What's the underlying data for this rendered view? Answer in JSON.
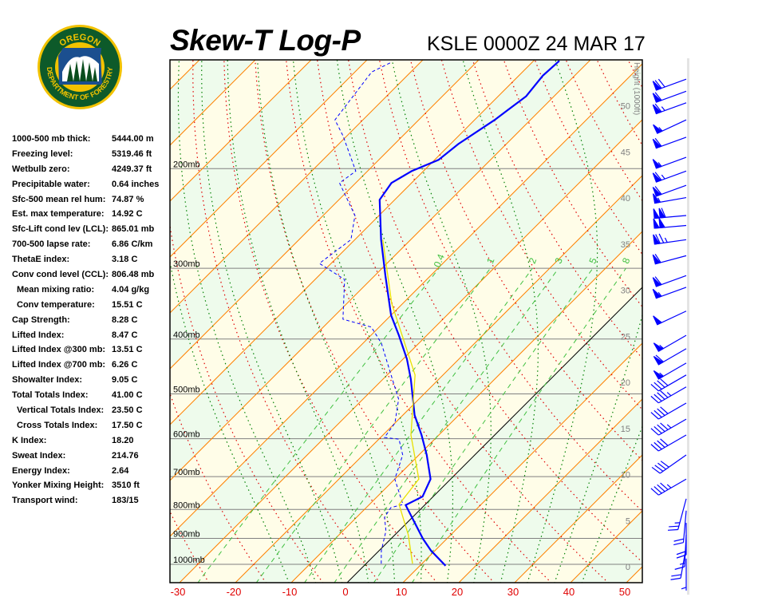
{
  "logo": {
    "top_text": "OREGON",
    "bottom_text": "DEPARTMENT OF FORESTRY"
  },
  "header": {
    "title": "Skew-T Log-P",
    "station": "KSLE 0000Z 24 MAR 17"
  },
  "indices": [
    {
      "label": "1000-500 mb thick:",
      "value": "5444.00 m"
    },
    {
      "label": "Freezing level:",
      "value": "5319.46 ft"
    },
    {
      "label": "Wetbulb zero:",
      "value": "4249.37 ft"
    },
    {
      "label": "Precipitable water:",
      "value": "0.64 inches"
    },
    {
      "label": "Sfc-500 mean rel hum:",
      "value": "74.87 %"
    },
    {
      "label": "Est. max temperature:",
      "value": "14.92 C"
    },
    {
      "label": "Sfc-Lift cond lev (LCL):",
      "value": "865.01 mb"
    },
    {
      "label": "700-500 lapse rate:",
      "value": "6.86 C/km"
    },
    {
      "label": "ThetaE index:",
      "value": "3.18 C"
    },
    {
      "label": "Conv cond level (CCL):",
      "value": "806.48 mb"
    },
    {
      "label": "Mean mixing ratio:",
      "value": "4.04 g/kg",
      "indent": true
    },
    {
      "label": "Conv temperature:",
      "value": "15.51 C",
      "indent": true
    },
    {
      "label": "Cap Strength:",
      "value": "8.28 C"
    },
    {
      "label": "Lifted Index:",
      "value": "8.47 C"
    },
    {
      "label": "Lifted Index @300 mb:",
      "value": "13.51 C"
    },
    {
      "label": "Lifted Index @700 mb:",
      "value": "6.26 C"
    },
    {
      "label": "Showalter Index:",
      "value": "9.05 C"
    },
    {
      "label": "Total Totals Index:",
      "value": "41.00 C"
    },
    {
      "label": "Vertical Totals Index:",
      "value": "23.50 C",
      "indent": true
    },
    {
      "label": "Cross Totals Index:",
      "value": "17.50 C",
      "indent": true
    },
    {
      "label": "K Index:",
      "value": "18.20"
    },
    {
      "label": "Sweat Index:",
      "value": "214.76"
    },
    {
      "label": "Energy Index:",
      "value": "2.64"
    },
    {
      "label": "Yonker Mixing Height:",
      "value": "3510 ft"
    },
    {
      "label": "Transport wind:",
      "value": "183/15"
    }
  ],
  "chart_data": {
    "type": "line",
    "title": "Skew-T Log-P",
    "x_axis": {
      "quantity": "temperature (C)",
      "ticks": [
        -30,
        -20,
        -10,
        0,
        10,
        20,
        30,
        40,
        50
      ],
      "skew_deg": 45
    },
    "y_axis": {
      "quantity": "pressure (mb)",
      "scale": "log",
      "range": [
        1078,
        128
      ],
      "ticks": [
        1000,
        900,
        800,
        700,
        600,
        500,
        400,
        300,
        200
      ],
      "tick_labels": [
        "1000mb",
        "900mb",
        "800mb",
        "700mb",
        "600mb",
        "500mb",
        "400mb",
        "300mb",
        "200mb"
      ]
    },
    "height_axis": {
      "label": "Height (1000ft)",
      "ticks": [
        0,
        5,
        10,
        15,
        20,
        25,
        30,
        35,
        40,
        45,
        50
      ]
    },
    "mixing_ratio_lines": {
      "values": [
        0.4,
        1,
        2,
        3,
        5,
        8
      ],
      "labels": [
        "0.4",
        "1",
        "2",
        "3",
        "5",
        "8"
      ]
    },
    "colors": {
      "temperature": "#0000ff",
      "dewpoint": "#0000ff",
      "parcel": "#e8e000",
      "isotherm": "#ff8000",
      "zero_isotherm": "#000000",
      "dry_adiabat": "#e00000",
      "moist_adiabat": "#008000",
      "mixing_ratio": "#40c040",
      "band_a": "#fffde8",
      "band_b": "#eefbec",
      "wind": "#0000ff"
    },
    "series": [
      {
        "id": "temperature",
        "style": "solid",
        "p": [
          1006,
          946,
          901,
          786,
          759,
          707,
          641,
          591,
          545,
          471,
          434,
          394,
          363,
          309,
          267,
          227,
          212,
          202,
          193,
          181,
          164,
          149,
          137,
          129
        ],
        "t": [
          14.6,
          9.3,
          5.7,
          -3.4,
          -1.9,
          -3.6,
          -8.6,
          -13.1,
          -17.9,
          -25,
          -29.3,
          -35,
          -40,
          -48.1,
          -55.3,
          -62.7,
          -63.6,
          -62.1,
          -59.3,
          -58.6,
          -56.4,
          -55,
          -55.7,
          -55.4
        ]
      },
      {
        "id": "dewpoint",
        "style": "dashed",
        "p": [
          997,
          946,
          873,
          826,
          794,
          784,
          707,
          641,
          601,
          597,
          563,
          511,
          463,
          407,
          381,
          369,
          314,
          294,
          267,
          242,
          212,
          202,
          175,
          164,
          135,
          130
        ],
        "t": [
          2.7,
          0.4,
          -2.3,
          -5,
          -5.6,
          -4,
          -10,
          -12.9,
          -16.4,
          -19.3,
          -20,
          -23.6,
          -29.3,
          -36.7,
          -41.4,
          -47.9,
          -54.7,
          -62.1,
          -60.7,
          -64.3,
          -72.9,
          -72.1,
          -80.7,
          -85,
          -87,
          -85.3
        ]
      },
      {
        "id": "parcel",
        "style": "solid",
        "p": [
          997,
          887,
          784,
          707,
          591,
          463,
          346,
          267
        ],
        "t": [
          8.3,
          2.4,
          -4.7,
          -5.7,
          -15,
          -25,
          -42,
          -55
        ]
      }
    ],
    "winds": [
      {
        "p": 139,
        "dir": 250,
        "spd": 70
      },
      {
        "p": 146,
        "dir": 250,
        "spd": 60
      },
      {
        "p": 153,
        "dir": 250,
        "spd": 65
      },
      {
        "p": 164,
        "dir": 245,
        "spd": 55
      },
      {
        "p": 176,
        "dir": 250,
        "spd": 60
      },
      {
        "p": 191,
        "dir": 250,
        "spd": 55
      },
      {
        "p": 202,
        "dir": 250,
        "spd": 65
      },
      {
        "p": 214,
        "dir": 250,
        "spd": 60
      },
      {
        "p": 225,
        "dir": 260,
        "spd": 55
      },
      {
        "p": 242,
        "dir": 265,
        "spd": 110
      },
      {
        "p": 252,
        "dir": 265,
        "spd": 100
      },
      {
        "p": 267,
        "dir": 262,
        "spd": 75
      },
      {
        "p": 285,
        "dir": 255,
        "spd": 60
      },
      {
        "p": 309,
        "dir": 250,
        "spd": 60
      },
      {
        "p": 324,
        "dir": 250,
        "spd": 55
      },
      {
        "p": 357,
        "dir": 245,
        "spd": 50
      },
      {
        "p": 394,
        "dir": 240,
        "spd": 55
      },
      {
        "p": 416,
        "dir": 240,
        "spd": 60
      },
      {
        "p": 441,
        "dir": 240,
        "spd": 55
      },
      {
        "p": 463,
        "dir": 240,
        "spd": 40
      },
      {
        "p": 486,
        "dir": 240,
        "spd": 45
      },
      {
        "p": 519,
        "dir": 240,
        "spd": 40
      },
      {
        "p": 554,
        "dir": 240,
        "spd": 45
      },
      {
        "p": 591,
        "dir": 240,
        "spd": 40
      },
      {
        "p": 641,
        "dir": 235,
        "spd": 40
      },
      {
        "p": 707,
        "dir": 240,
        "spd": 45
      },
      {
        "p": 766,
        "dir": 195,
        "spd": 25
      },
      {
        "p": 804,
        "dir": 185,
        "spd": 20
      },
      {
        "p": 845,
        "dir": 180,
        "spd": 20
      },
      {
        "p": 887,
        "dir": 183,
        "spd": 15
      },
      {
        "p": 931,
        "dir": 190,
        "spd": 20
      },
      {
        "p": 977,
        "dir": 180,
        "spd": 5
      }
    ]
  }
}
